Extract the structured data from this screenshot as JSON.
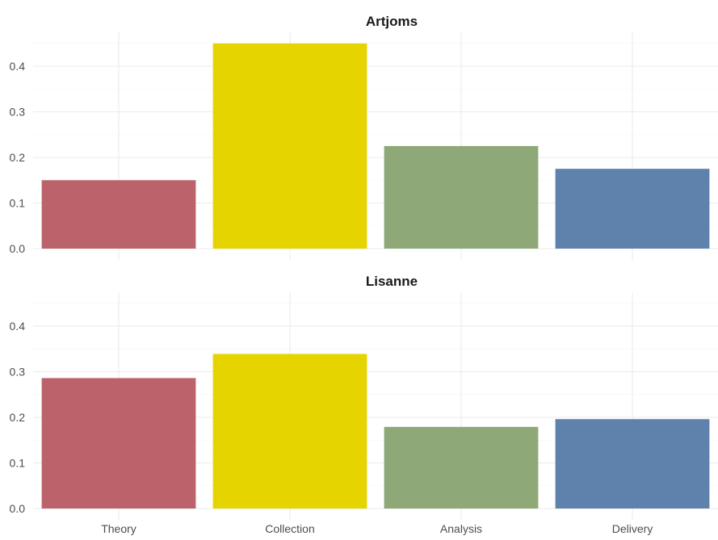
{
  "chart_data": {
    "type": "bar",
    "layout": "facet-rows",
    "categories": [
      "Theory",
      "Collection",
      "Analysis",
      "Delivery"
    ],
    "colors": [
      "#bc626a",
      "#e6d400",
      "#8fa878",
      "#5f82ac"
    ],
    "ylim": [
      0,
      0.47
    ],
    "yticks": [
      "0.0",
      "0.1",
      "0.2",
      "0.3",
      "0.4"
    ],
    "xlabel": "",
    "ylabel": "",
    "grid": true,
    "legend": "none",
    "facets": [
      {
        "title": "Artjoms",
        "values": [
          0.15,
          0.45,
          0.225,
          0.175
        ]
      },
      {
        "title": "Lisanne",
        "values": [
          0.286,
          0.339,
          0.179,
          0.196
        ]
      }
    ]
  }
}
